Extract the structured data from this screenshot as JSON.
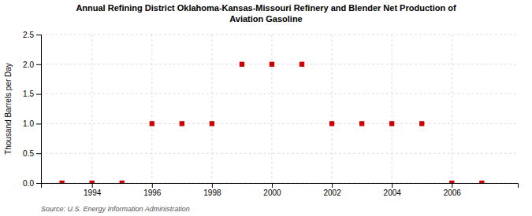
{
  "chart_data": {
    "type": "scatter",
    "title": "Annual Refining District Oklahoma-Kansas-Missouri Refinery and Blender Net Production of\nAviation Gasoline",
    "y_label": "Thousand Barrels per Day",
    "source": "Source: U.S. Energy Information Administration",
    "x": [
      1993,
      1994,
      1995,
      1996,
      1997,
      1998,
      1999,
      2000,
      2001,
      2002,
      2003,
      2004,
      2005,
      2006,
      2007
    ],
    "values": [
      0.0,
      0.0,
      0.0,
      1.0,
      1.0,
      1.0,
      2.0,
      2.0,
      2.0,
      1.0,
      1.0,
      1.0,
      1.0,
      0.0,
      0.0
    ],
    "color": "#cc0000",
    "marker": "square",
    "xlim": [
      1992.3,
      2008.2
    ],
    "ylim": [
      0.0,
      2.5
    ],
    "xticks": [
      1994,
      1996,
      1998,
      2000,
      2002,
      2004,
      2006
    ],
    "yticks": [
      {
        "value": 0.0,
        "label": "0.0"
      },
      0.5,
      {
        "value": 1.0,
        "label": "1.0"
      },
      1.5,
      {
        "value": 2.0,
        "label": "2.0"
      },
      2.5
    ],
    "grid": true
  }
}
